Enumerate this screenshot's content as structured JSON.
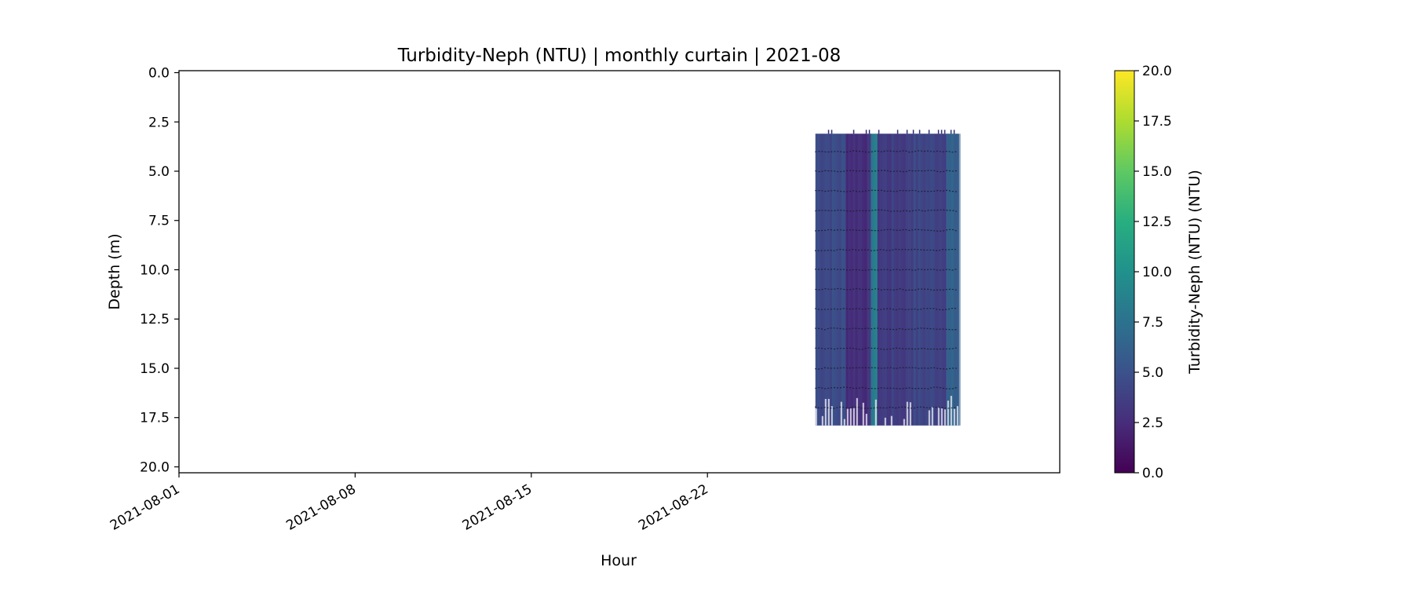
{
  "chart_data": {
    "type": "heatmap",
    "title": "Turbidity-Neph (NTU) | monthly curtain | 2021-08",
    "xlabel": "Hour",
    "ylabel": "Depth (m)",
    "x_range": [
      "2021-08-01",
      "2021-09-05"
    ],
    "y_range": [
      20.3,
      -0.1
    ],
    "y_inverted": true,
    "x_tick_labels": [
      "2021-08-01",
      "2021-08-08",
      "2021-08-15",
      "2021-08-22"
    ],
    "x_tick_values": [
      "2021-08-01",
      "2021-08-08",
      "2021-08-15",
      "2021-08-22"
    ],
    "y_tick_labels": [
      "0.0",
      "2.5",
      "5.0",
      "7.5",
      "10.0",
      "12.5",
      "15.0",
      "17.5",
      "20.0"
    ],
    "y_tick_values": [
      0.0,
      2.5,
      5.0,
      7.5,
      10.0,
      12.5,
      15.0,
      17.5,
      20.0
    ],
    "data_extent": {
      "time_start": "2021-08-26T07:00",
      "time_end": "2021-09-01T00:00",
      "depth_top": 3.1,
      "depth_bottom": 17.9
    },
    "sensor_depths_m": [
      4.0,
      5.0,
      6.0,
      7.0,
      8.0,
      9.0,
      10.0,
      11.0,
      12.0,
      13.0,
      14.0,
      15.0,
      16.0,
      17.0
    ],
    "value_bands": [
      {
        "time_start": "2021-08-26T07:00",
        "time_end": "2021-08-27T12:00",
        "turbidity_ntu": 4.6
      },
      {
        "time_start": "2021-08-27T12:00",
        "time_end": "2021-08-28T12:00",
        "turbidity_ntu": 2.8
      },
      {
        "time_start": "2021-08-28T12:00",
        "time_end": "2021-08-28T18:00",
        "turbidity_ntu": 8.5
      },
      {
        "time_start": "2021-08-28T18:00",
        "time_end": "2021-08-30T00:00",
        "turbidity_ntu": 3.6
      },
      {
        "time_start": "2021-08-30T00:00",
        "time_end": "2021-08-31T12:00",
        "turbidity_ntu": 4.2
      },
      {
        "time_start": "2021-08-31T12:00",
        "time_end": "2021-09-01T00:00",
        "turbidity_ntu": 6.0
      }
    ],
    "colorbar": {
      "label": "Turbidity-Neph (NTU) (NTU)",
      "colormap": "viridis",
      "vmin": 0.0,
      "vmax": 20.0,
      "tick_labels": [
        "0.0",
        "2.5",
        "5.0",
        "7.5",
        "10.0",
        "12.5",
        "15.0",
        "17.5",
        "20.0"
      ],
      "tick_values": [
        0.0,
        2.5,
        5.0,
        7.5,
        10.0,
        12.5,
        15.0,
        17.5,
        20.0
      ]
    },
    "grid": false
  }
}
